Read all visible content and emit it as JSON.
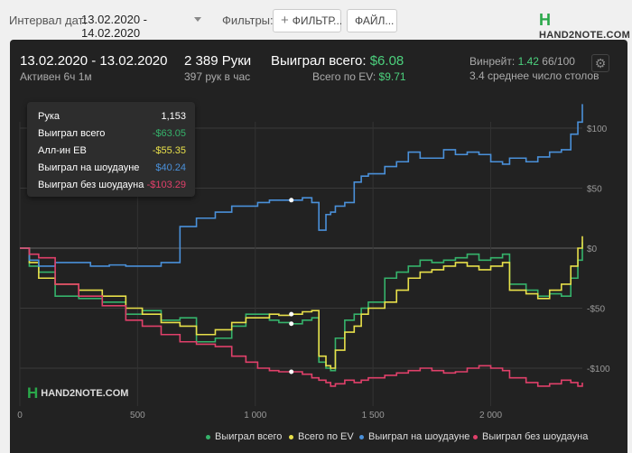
{
  "toolbar": {
    "date_label": "Интервал дат:",
    "date_value": "13.02.2020 - 14.02.2020",
    "filters_label": "Фильтры:",
    "filters_button": "ФИЛЬТР...",
    "file_button": "ФАЙЛ...",
    "logo_text": "HAND2NOTE.COM"
  },
  "summary": {
    "date_range": "13.02.2020 - 13.02.2020",
    "active": "Активен 6ч 1м",
    "hands": "2 389 Руки",
    "hands_per_hour": "397 рук в час",
    "won_total_label": "Выиграл всего:",
    "won_total_value": "$6.08",
    "ev_label": "Всего по EV:",
    "ev_value": "$9.71",
    "winrate_label": "Винрейт:",
    "winrate_value": "1.42",
    "winrate_suffix": "66/100",
    "tables_avg": "3.4 среднее число столов"
  },
  "tooltip": {
    "rows": [
      {
        "label": "Рука",
        "value": "1,153",
        "color": "#ffffff"
      },
      {
        "label": "Выиграл всего",
        "value": "-$63.05",
        "color": "#35b36b"
      },
      {
        "label": "Алл-ин EB",
        "value": "-$55.35",
        "color": "#e8e04a"
      },
      {
        "label": "Выиграл на шоудауне",
        "value": "$40.24",
        "color": "#4a90d9"
      },
      {
        "label": "Выиграл без шоудауна",
        "value": "-$103.29",
        "color": "#e0406a"
      }
    ]
  },
  "watermark": "HAND2NOTE.COM",
  "chart_data": {
    "type": "line",
    "xlim": [
      0,
      2389
    ],
    "ylim": [
      -120,
      120
    ],
    "x_ticks": [
      {
        "v": 0,
        "label": "0"
      },
      {
        "v": 500,
        "label": "500"
      },
      {
        "v": 1000,
        "label": "1 000"
      },
      {
        "v": 1500,
        "label": "1 500"
      },
      {
        "v": 2000,
        "label": "2 000"
      }
    ],
    "y_ticks": [
      {
        "v": 100,
        "label": "$100"
      },
      {
        "v": 50,
        "label": "$50"
      },
      {
        "v": 0,
        "label": "$0"
      },
      {
        "v": -50,
        "label": "-$50"
      },
      {
        "v": -100,
        "label": "-$100"
      }
    ],
    "grid": true,
    "legend_position": "bottom-right",
    "hover_x": 1153,
    "series": [
      {
        "name": "Выиграл всего",
        "color": "#35b36b",
        "x": [
          0,
          40,
          80,
          150,
          250,
          350,
          450,
          520,
          600,
          680,
          750,
          830,
          900,
          960,
          1010,
          1060,
          1100,
          1153,
          1200,
          1240,
          1270,
          1300,
          1320,
          1340,
          1380,
          1420,
          1450,
          1480,
          1550,
          1600,
          1650,
          1700,
          1750,
          1800,
          1850,
          1900,
          1950,
          2000,
          2050,
          2080,
          2150,
          2200,
          2250,
          2300,
          2340,
          2370,
          2389
        ],
        "y": [
          0,
          -15,
          -20,
          -40,
          -42,
          -45,
          -55,
          -52,
          -60,
          -58,
          -78,
          -75,
          -65,
          -55,
          -55,
          -60,
          -62,
          -63,
          -60,
          -58,
          -95,
          -100,
          -102,
          -75,
          -60,
          -55,
          -50,
          -45,
          -25,
          -20,
          -15,
          -10,
          -12,
          -10,
          -8,
          -5,
          -10,
          -8,
          -5,
          -30,
          -35,
          -40,
          -38,
          -40,
          -25,
          -10,
          5
        ]
      },
      {
        "name": "Всего по EV",
        "color": "#e8e04a",
        "x": [
          0,
          40,
          80,
          150,
          250,
          350,
          450,
          520,
          600,
          680,
          750,
          830,
          900,
          960,
          1010,
          1060,
          1100,
          1153,
          1200,
          1240,
          1270,
          1300,
          1320,
          1340,
          1380,
          1420,
          1450,
          1480,
          1550,
          1600,
          1650,
          1700,
          1750,
          1800,
          1850,
          1900,
          1950,
          2000,
          2050,
          2080,
          2150,
          2200,
          2250,
          2300,
          2340,
          2370,
          2389
        ],
        "y": [
          0,
          -12,
          -25,
          -30,
          -35,
          -40,
          -50,
          -55,
          -62,
          -65,
          -72,
          -68,
          -62,
          -58,
          -58,
          -55,
          -56,
          -55,
          -53,
          -52,
          -90,
          -98,
          -100,
          -85,
          -70,
          -65,
          -55,
          -50,
          -45,
          -35,
          -25,
          -20,
          -18,
          -15,
          -12,
          -15,
          -18,
          -15,
          -12,
          -35,
          -38,
          -42,
          -35,
          -30,
          -15,
          0,
          10
        ]
      },
      {
        "name": "Выиграл на шоудауне",
        "color": "#4a90d9",
        "x": [
          0,
          40,
          80,
          150,
          300,
          380,
          450,
          600,
          680,
          750,
          830,
          900,
          960,
          1010,
          1060,
          1100,
          1153,
          1200,
          1240,
          1270,
          1300,
          1320,
          1340,
          1380,
          1420,
          1450,
          1480,
          1550,
          1600,
          1650,
          1700,
          1800,
          1850,
          1900,
          1950,
          2000,
          2050,
          2080,
          2150,
          2200,
          2250,
          2300,
          2340,
          2370,
          2389
        ],
        "y": [
          0,
          -10,
          -15,
          -12,
          -15,
          -14,
          -15,
          -12,
          18,
          25,
          30,
          35,
          35,
          38,
          40,
          40,
          40,
          42,
          38,
          15,
          28,
          30,
          35,
          38,
          55,
          60,
          62,
          68,
          72,
          80,
          75,
          82,
          78,
          80,
          78,
          72,
          70,
          75,
          72,
          76,
          80,
          82,
          95,
          105,
          120
        ]
      },
      {
        "name": "Выиграл без шоудауна",
        "color": "#e0406a",
        "x": [
          0,
          40,
          80,
          150,
          250,
          350,
          450,
          520,
          600,
          680,
          750,
          830,
          900,
          960,
          1010,
          1060,
          1100,
          1153,
          1200,
          1240,
          1270,
          1300,
          1320,
          1340,
          1380,
          1420,
          1450,
          1480,
          1550,
          1600,
          1650,
          1700,
          1750,
          1800,
          1850,
          1900,
          1950,
          2000,
          2050,
          2080,
          2150,
          2200,
          2250,
          2300,
          2340,
          2370,
          2389
        ],
        "y": [
          0,
          -5,
          -8,
          -30,
          -40,
          -48,
          -60,
          -65,
          -72,
          -78,
          -80,
          -82,
          -90,
          -95,
          -100,
          -102,
          -103,
          -103,
          -105,
          -108,
          -110,
          -112,
          -115,
          -113,
          -110,
          -112,
          -110,
          -108,
          -106,
          -104,
          -102,
          -100,
          -102,
          -104,
          -103,
          -100,
          -98,
          -100,
          -102,
          -108,
          -112,
          -115,
          -113,
          -110,
          -112,
          -115,
          -112
        ]
      }
    ]
  }
}
